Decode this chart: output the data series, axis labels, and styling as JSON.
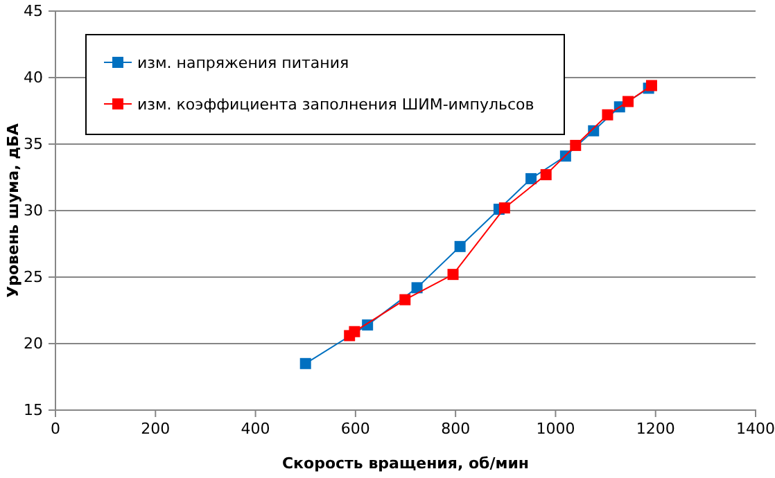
{
  "chart_data": {
    "type": "line",
    "xlabel": "Скорость вращения, об/мин",
    "ylabel": "Уровень шума, дБА",
    "xlim": [
      0,
      1400
    ],
    "xticks": [
      0,
      200,
      400,
      600,
      800,
      1000,
      1200,
      1400
    ],
    "ylim": [
      15,
      45
    ],
    "yticks": [
      15,
      20,
      25,
      30,
      35,
      40,
      45
    ],
    "grid": "y",
    "legend": "top left",
    "marker": "square",
    "line_style": "solid",
    "series": [
      {
        "name": "изм. напряжения питания",
        "color": "#0070c0",
        "x": [
          500,
          624,
          723,
          809,
          887,
          951,
          1020,
          1076,
          1128,
          1186
        ],
        "values": [
          18.5,
          21.4,
          24.2,
          27.3,
          30.1,
          32.4,
          34.1,
          36,
          37.8,
          39.2
        ]
      },
      {
        "name": "изм. коэффициента заполнения ШИМ-импульсов",
        "color": "#ff0000",
        "x": [
          588,
          598,
          699,
          795,
          898,
          981,
          1040,
          1104,
          1145,
          1192
        ],
        "values": [
          20.6,
          20.9,
          23.3,
          25.2,
          30.2,
          32.7,
          34.9,
          37.2,
          38.2,
          39.4
        ]
      }
    ]
  }
}
